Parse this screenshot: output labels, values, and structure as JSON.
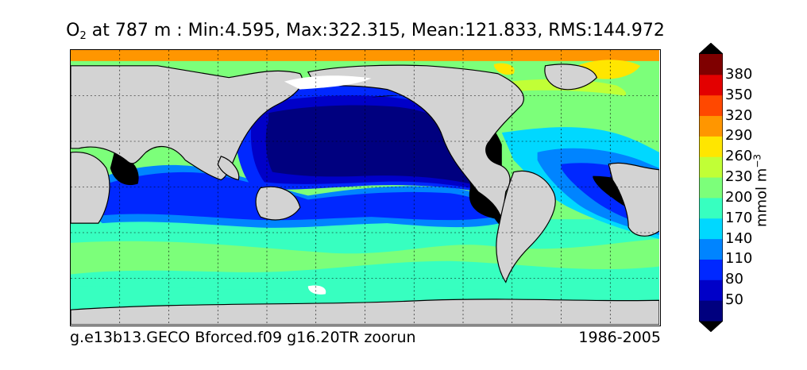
{
  "title": {
    "species": "O",
    "subscript": "2",
    "rest": " at 787 m : Min:4.595, Max:322.315, Mean:121.833, RMS:144.972"
  },
  "footer": {
    "run": "g.e13b13.GECO Bforced.f09 g16.20TR zoorun",
    "period": "1986-2005"
  },
  "colorbar": {
    "unit_base": "mmol m",
    "unit_exp": "−3",
    "levels": [
      "50",
      "80",
      "110",
      "140",
      "170",
      "200",
      "230",
      "260",
      "290",
      "320",
      "350",
      "380"
    ],
    "colors": [
      "#00007f",
      "#0000c8",
      "#0028ff",
      "#0084ff",
      "#00d8ff",
      "#37ffc0",
      "#7cff7a",
      "#c1ff36",
      "#ffe600",
      "#ff9600",
      "#ff4800",
      "#e30000",
      "#7f0000"
    ],
    "extend": "both"
  },
  "map": {
    "land_color": "#d3d3d3",
    "grid": "dotted",
    "projection": "cylindrical"
  }
}
